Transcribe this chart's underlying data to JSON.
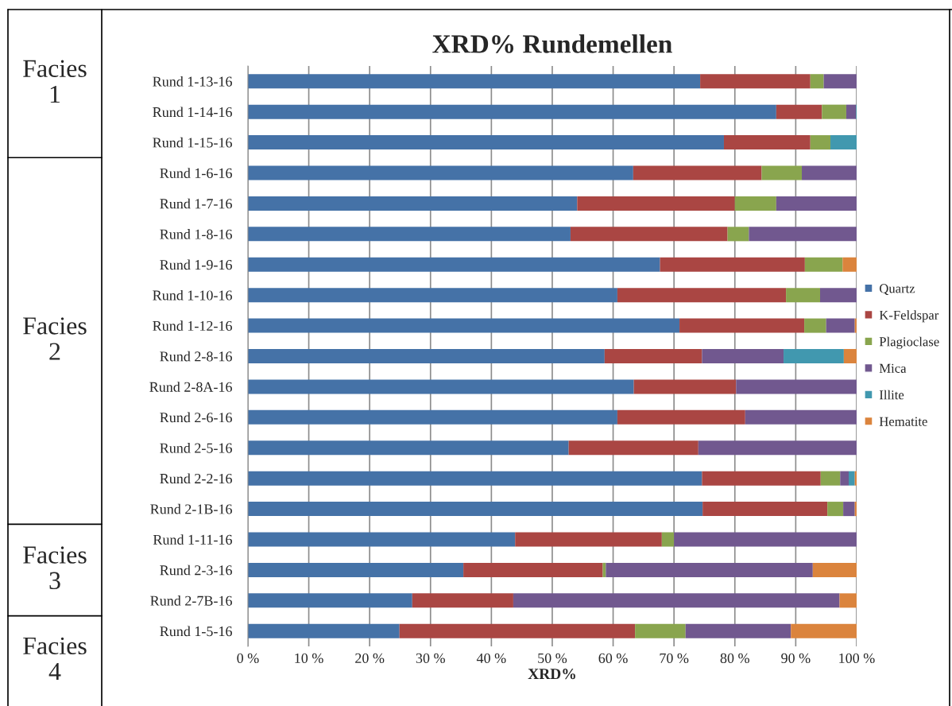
{
  "chart_data": {
    "type": "bar",
    "orientation": "horizontal",
    "stacked": true,
    "title": "XRD% Rundemellen",
    "xlabel": "XRD%",
    "categories": [
      "Rund 1-13-16",
      "Rund 1-14-16",
      "Rund 1-15-16",
      "Rund 1-6-16",
      "Rund 1-7-16",
      "Rund 1-8-16",
      "Rund 1-9-16",
      "Rund 1-10-16",
      "Rund 1-12-16",
      "Rund 2-8-16",
      "Rund 2-8A-16",
      "Rund 2-6-16",
      "Rund 2-5-16",
      "Rund 2-2-16",
      "Rund 2-1B-16",
      "Rund 1-11-16",
      "Rund 2-3-16",
      "Rund 2-7B-16",
      "Rund 1-5-16"
    ],
    "series": [
      {
        "name": "Quartz",
        "color": "#4572a7",
        "values": [
          74.3,
          86.8,
          78.2,
          63.3,
          54.1,
          53.0,
          67.7,
          60.7,
          70.9,
          58.6,
          63.4,
          60.7,
          52.7,
          74.6,
          74.7,
          43.9,
          35.4,
          27.0,
          24.9
        ]
      },
      {
        "name": "K-Feldspar",
        "color": "#aa4643",
        "values": [
          18.1,
          7.5,
          14.2,
          21.1,
          25.9,
          25.8,
          23.8,
          27.7,
          20.5,
          16.0,
          16.8,
          21.0,
          21.3,
          19.5,
          20.5,
          24.1,
          22.9,
          16.6,
          38.7
        ]
      },
      {
        "name": "Plagioclase",
        "color": "#89a54e",
        "values": [
          2.2,
          4.0,
          3.3,
          6.6,
          6.8,
          3.5,
          6.2,
          5.6,
          3.6,
          null,
          null,
          null,
          null,
          3.2,
          2.6,
          2.0,
          0.5,
          null,
          8.3
        ]
      },
      {
        "name": "Mica",
        "color": "#71588f",
        "values": [
          5.4,
          1.6,
          null,
          9.0,
          13.2,
          17.7,
          null,
          6.0,
          4.7,
          13.4,
          19.8,
          18.3,
          26.0,
          1.4,
          1.9,
          30.0,
          34.0,
          53.6,
          17.3
        ]
      },
      {
        "name": "Illite",
        "color": "#4198af",
        "values": [
          null,
          0.1,
          4.3,
          null,
          null,
          null,
          null,
          null,
          null,
          9.9,
          null,
          null,
          null,
          1.0,
          null,
          null,
          null,
          null,
          null
        ]
      },
      {
        "name": "Hematite",
        "color": "#db843d",
        "values": [
          null,
          null,
          null,
          null,
          null,
          null,
          2.3,
          null,
          0.3,
          2.1,
          null,
          null,
          null,
          0.3,
          0.3,
          null,
          7.2,
          2.8,
          10.8
        ]
      }
    ],
    "xlim": [
      0,
      100
    ],
    "xticks": [
      {
        "value": 0,
        "label": "0 %"
      },
      {
        "value": 10,
        "label": "10 %"
      },
      {
        "value": 20,
        "label": "20 %"
      },
      {
        "value": 30,
        "label": "30 %"
      },
      {
        "value": 40,
        "label": "40 %"
      },
      {
        "value": 50,
        "label": "50 %"
      },
      {
        "value": 60,
        "label": "60 %"
      },
      {
        "value": 70,
        "label": "70 %"
      },
      {
        "value": 80,
        "label": "80 %"
      },
      {
        "value": 90,
        "label": "90 %"
      },
      {
        "value": 100,
        "label": "100 %"
      }
    ],
    "grid": "x",
    "legend": "right",
    "annotations": [
      "Facies\n1",
      "Facies\n2",
      "Facies\n3",
      "Facies\n4"
    ]
  }
}
